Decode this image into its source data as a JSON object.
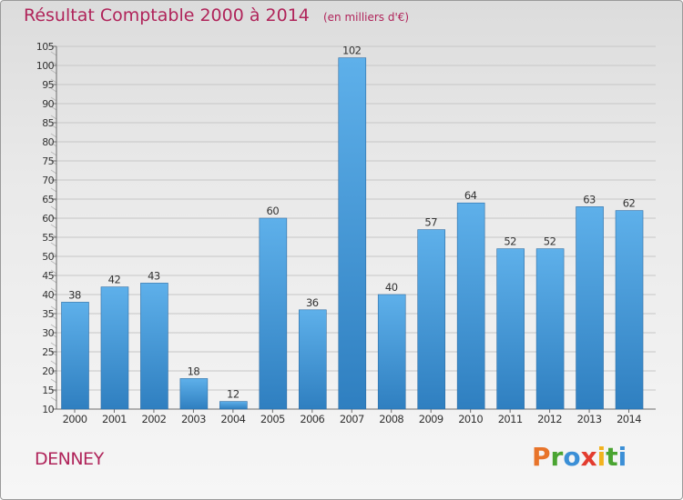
{
  "header": {
    "title": "Résultat Comptable 2000 à 2014",
    "unit": "(en milliers d'€)"
  },
  "commune": "DENNEY",
  "logo": {
    "letters": [
      "P",
      "r",
      "o",
      "x",
      "i",
      "t",
      "i"
    ],
    "colors": [
      "#e8742a",
      "#4aa431",
      "#3b8fd6",
      "#e33c2f",
      "#f2b21d",
      "#4aa431",
      "#3b8fd6"
    ]
  },
  "colors": {
    "title": "#b0245a",
    "bar_top": "#5eb0ea",
    "bar_bottom": "#2f7fc0"
  },
  "chart_data": {
    "type": "bar",
    "title": "Résultat Comptable 2000 à 2014",
    "categories": [
      "2000",
      "2001",
      "2002",
      "2003",
      "2004",
      "2005",
      "2006",
      "2007",
      "2008",
      "2009",
      "2010",
      "2011",
      "2012",
      "2013",
      "2014"
    ],
    "values": [
      38,
      42,
      43,
      18,
      12,
      60,
      36,
      102,
      40,
      57,
      64,
      52,
      52,
      63,
      62
    ],
    "ylim": [
      10,
      105
    ],
    "yticks": [
      10,
      15,
      20,
      25,
      30,
      35,
      40,
      45,
      50,
      55,
      60,
      65,
      70,
      75,
      80,
      85,
      90,
      95,
      100,
      105
    ],
    "grid": true,
    "data_labels": true
  }
}
